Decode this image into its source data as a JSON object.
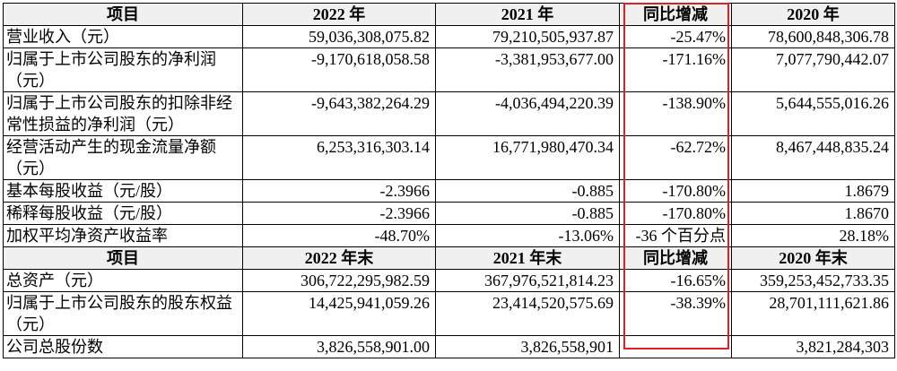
{
  "table": {
    "sections": [
      {
        "header": [
          "项目",
          "2022 年",
          "2021 年",
          "同比增减",
          "2020 年"
        ],
        "rows": [
          [
            "营业收入（元）",
            "59,036,308,075.82",
            "79,210,505,937.87",
            "-25.47%",
            "78,600,848,306.78"
          ],
          [
            "归属于上市公司股东的净利润（元）",
            "-9,170,618,058.58",
            "-3,381,953,677.00",
            "-171.16%",
            "7,077,790,442.07"
          ],
          [
            "归属于上市公司股东的扣除非经常性损益的净利润（元）",
            "-9,643,382,264.29",
            "-4,036,494,220.39",
            "-138.90%",
            "5,644,555,016.26"
          ],
          [
            "经营活动产生的现金流量净额（元）",
            "6,253,316,303.14",
            "16,771,980,470.34",
            "-62.72%",
            "8,467,448,835.24"
          ],
          [
            "基本每股收益（元/股）",
            "-2.3966",
            "-0.885",
            "-170.80%",
            "1.8679"
          ],
          [
            "稀释每股收益（元/股）",
            "-2.3966",
            "-0.885",
            "-170.80%",
            "1.8670"
          ],
          [
            "加权平均净资产收益率",
            "-48.70%",
            "-13.06%",
            "-36 个百分点",
            "28.18%"
          ]
        ]
      },
      {
        "header": [
          "项目",
          "2022 年末",
          "2021 年末",
          "同比增减",
          "2020 年末"
        ],
        "rows": [
          [
            "总资产（元）",
            "306,722,295,982.59",
            "367,976,521,814.23",
            "-16.65%",
            "359,253,452,733.35"
          ],
          [
            "归属于上市公司股东的股东权益（元）",
            "14,425,941,059.26",
            "23,414,520,575.69",
            "-38.39%",
            "28,701,111,621.86"
          ],
          [
            "公司总股份数",
            "3,826,558,901.00",
            "3,826,558,901",
            "-",
            "3,821,284,303"
          ]
        ]
      }
    ]
  }
}
